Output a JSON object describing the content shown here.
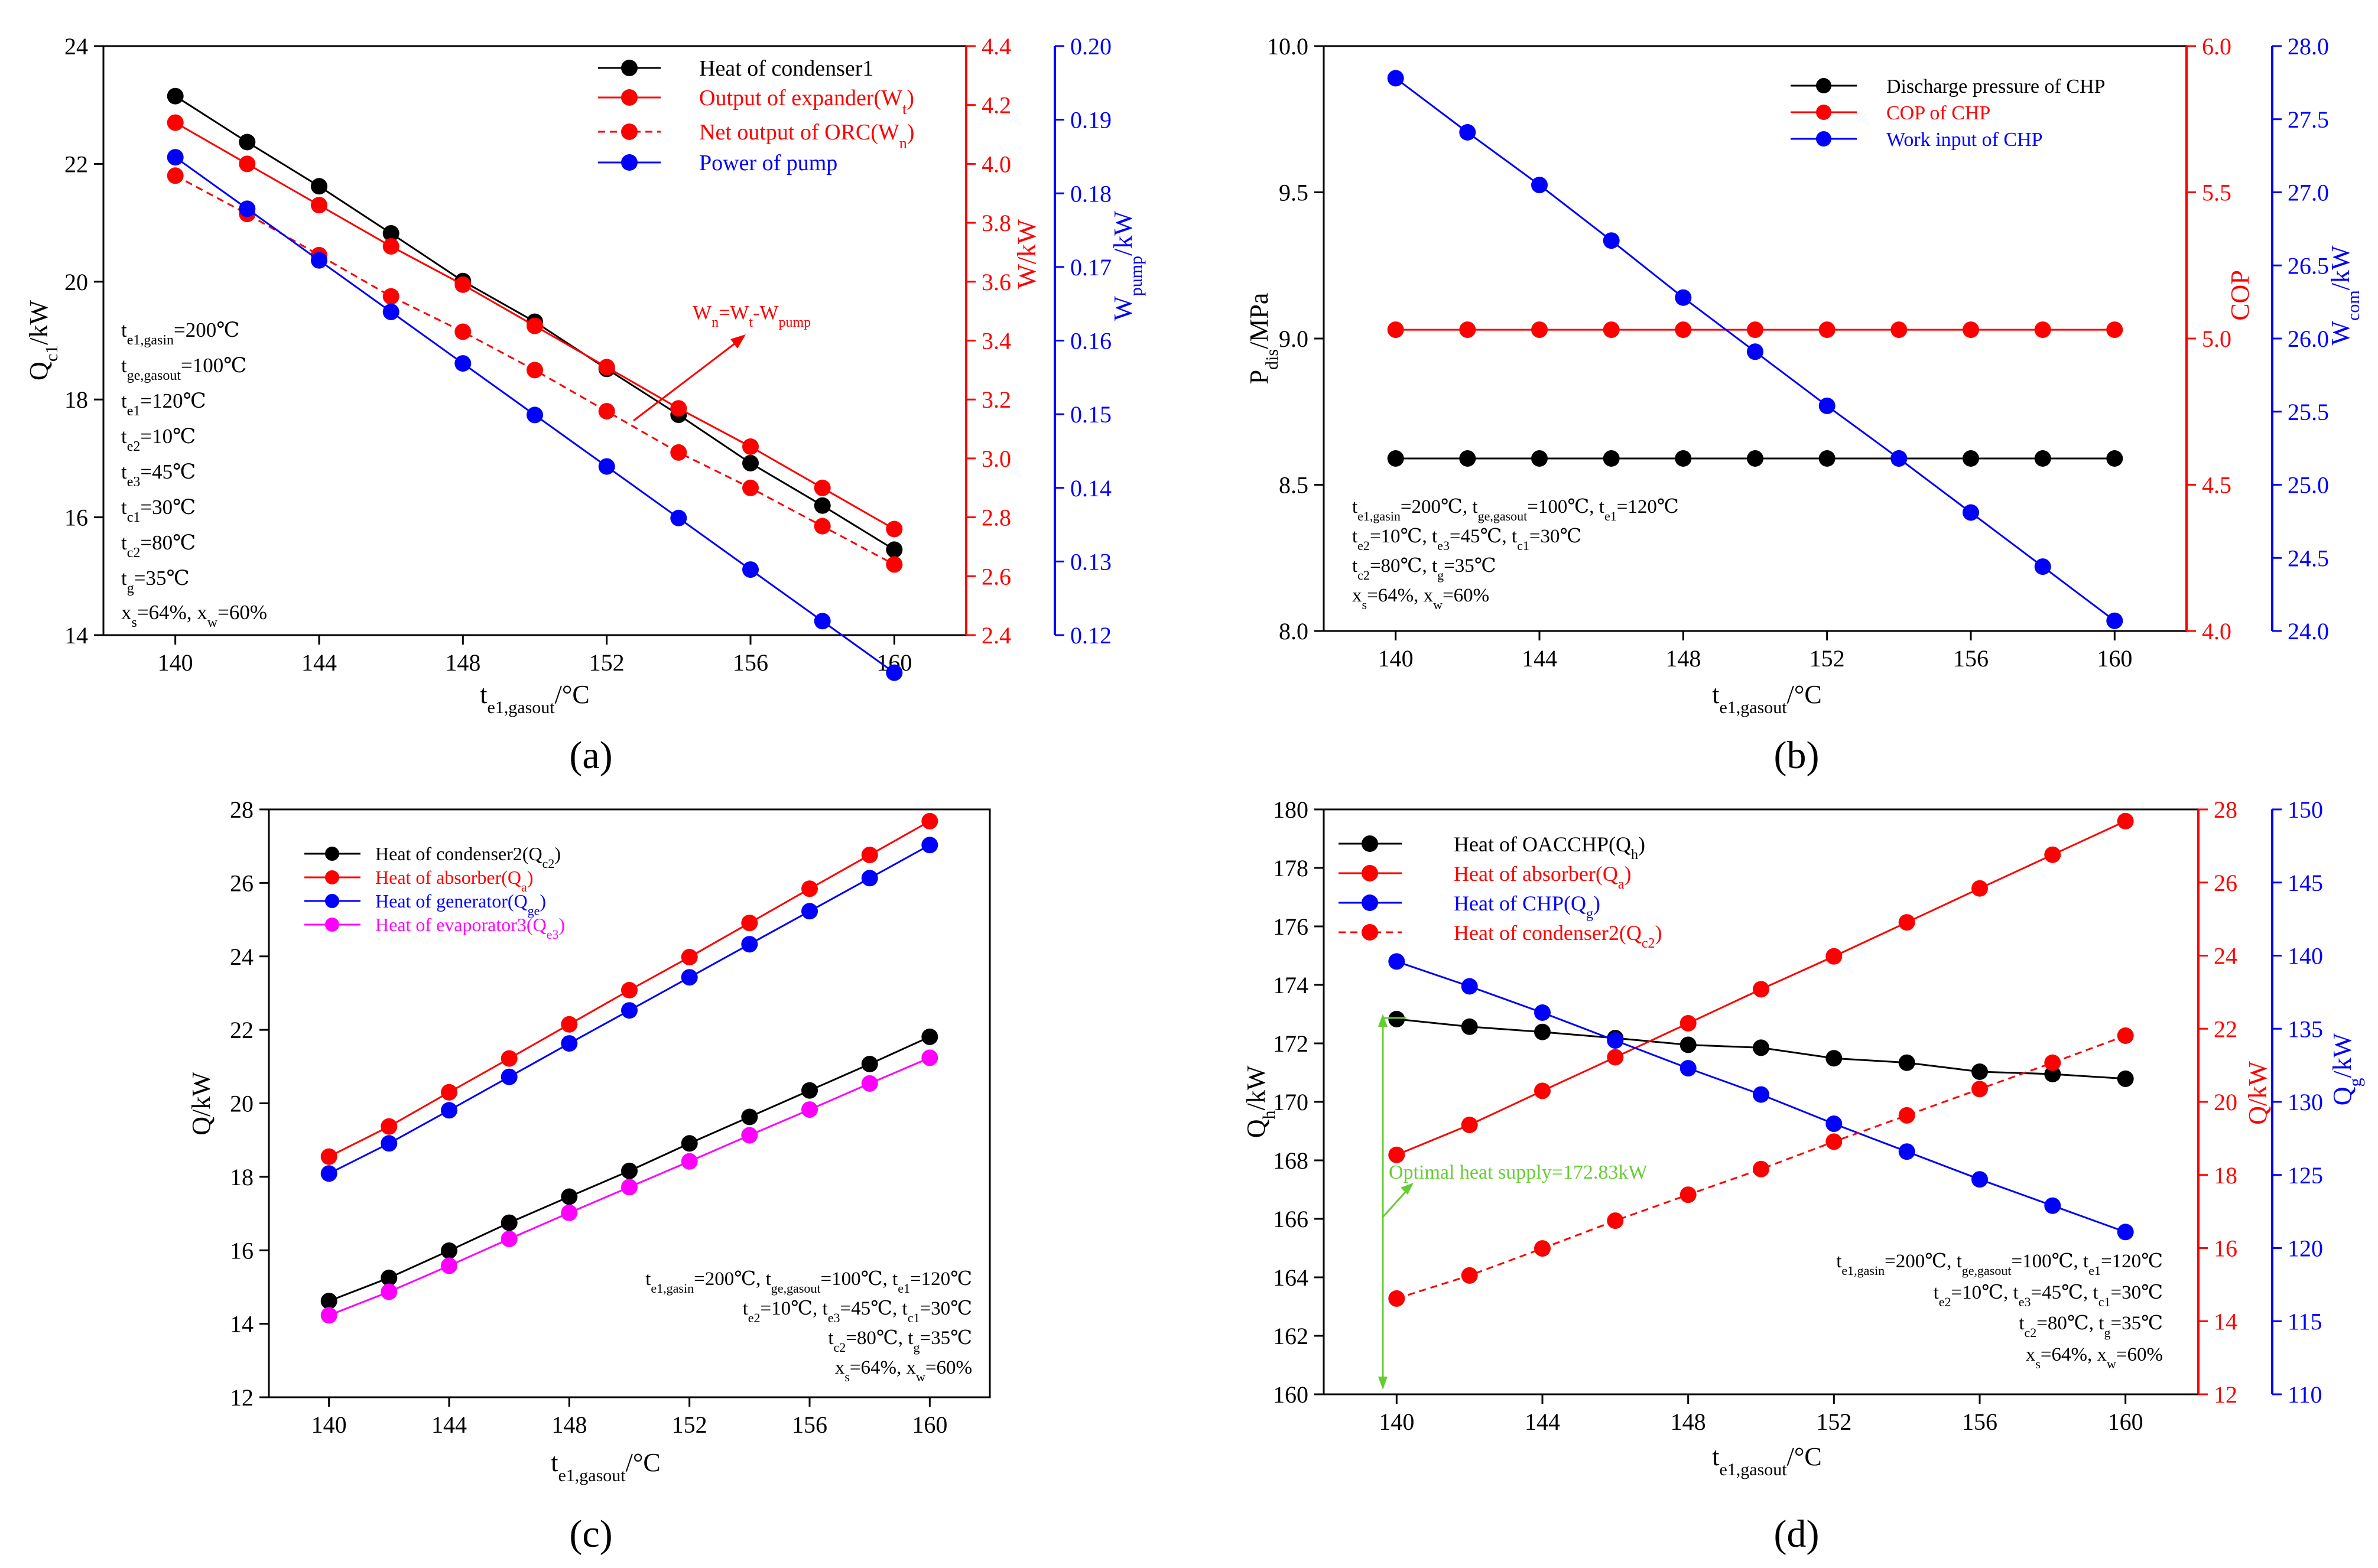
{
  "figure": {
    "panels": [
      "(a)",
      "(b)",
      "(c)",
      "(d)"
    ]
  },
  "colors": {
    "black": "#000000",
    "red": "#ff0000",
    "blue": "#0000ff",
    "magenta": "#ff00ff",
    "green": "#66cc33"
  },
  "chart_data": [
    {
      "type": "line",
      "panel": "(a)",
      "xlabel": "t e1,gasout /°C",
      "x": [
        140,
        142,
        144,
        146,
        148,
        150,
        152,
        154,
        156,
        158,
        160
      ],
      "xlim": [
        138,
        162
      ],
      "xticks": [
        140,
        144,
        148,
        152,
        156,
        160
      ],
      "axes": [
        {
          "id": "y1",
          "side": "left",
          "color": "#000000",
          "label": "Q c1 /kW",
          "lim": [
            14,
            24
          ],
          "ticks": [
            14,
            16,
            18,
            20,
            22,
            24
          ],
          "decimals": 0
        },
        {
          "id": "y2",
          "side": "right",
          "color": "#ff0000",
          "label": "W/kW",
          "lim": [
            2.4,
            4.4
          ],
          "ticks": [
            2.4,
            2.6,
            2.8,
            3.0,
            3.2,
            3.4,
            3.6,
            3.8,
            4.0,
            4.2,
            4.4
          ],
          "decimals": 1
        },
        {
          "id": "y3",
          "side": "right2",
          "color": "#0000ff",
          "label": "W pump /kW",
          "lim": [
            0.12,
            0.2
          ],
          "ticks": [
            0.12,
            0.13,
            0.14,
            0.15,
            0.16,
            0.17,
            0.18,
            0.19,
            0.2
          ],
          "decimals": 2
        }
      ],
      "series": [
        {
          "name": "Heat of condenser1",
          "axis": "y1",
          "color": "#000000",
          "dash": false,
          "values": [
            23.15,
            22.37,
            21.62,
            20.82,
            20.01,
            19.32,
            18.52,
            17.74,
            16.92,
            16.2,
            15.45
          ]
        },
        {
          "name": "Output of expander(Wt)",
          "axis": "y2",
          "color": "#ff0000",
          "dash": false,
          "values": [
            4.14,
            4.0,
            3.86,
            3.72,
            3.59,
            3.45,
            3.31,
            3.17,
            3.04,
            2.9,
            2.76
          ]
        },
        {
          "name": "Net output of ORC(Wn)",
          "axis": "y2",
          "color": "#ff0000",
          "dash": true,
          "values": [
            3.96,
            3.83,
            3.69,
            3.55,
            3.43,
            3.3,
            3.16,
            3.02,
            2.9,
            2.77,
            2.64
          ]
        },
        {
          "name": "Power of pump",
          "axis": "y3",
          "color": "#0000ff",
          "dash": false,
          "values": [
            0.1849,
            0.1779,
            0.1709,
            0.1639,
            0.1569,
            0.1499,
            0.1429,
            0.1359,
            0.1289,
            0.1219,
            0.1149
          ]
        }
      ],
      "legend_position": "top-right",
      "conditions": [
        "te1,gasin=200℃",
        "tge,gasout=100℃",
        "te1=120℃",
        "te2=10℃",
        "te3=45℃",
        "tc1=30℃",
        "tc2=80℃",
        "tg=35℃",
        "xs=64%, xw=60%"
      ],
      "annotations": [
        "Wn=Wt-Wpump"
      ]
    },
    {
      "type": "line",
      "panel": "(b)",
      "xlabel": "t e1,gasout /°C",
      "x": [
        140,
        142,
        144,
        146,
        148,
        150,
        152,
        154,
        156,
        158,
        160
      ],
      "xlim": [
        138,
        162
      ],
      "xticks": [
        140,
        144,
        148,
        152,
        156,
        160
      ],
      "axes": [
        {
          "id": "y1",
          "side": "left",
          "color": "#000000",
          "label": "P dis /MPa",
          "lim": [
            8.0,
            10.0
          ],
          "ticks": [
            8.0,
            8.5,
            9.0,
            9.5,
            10.0
          ],
          "decimals": 1
        },
        {
          "id": "y2",
          "side": "right",
          "color": "#ff0000",
          "label": "COP",
          "lim": [
            4.0,
            6.0
          ],
          "ticks": [
            4.0,
            4.5,
            5.0,
            5.5,
            6.0
          ],
          "decimals": 1
        },
        {
          "id": "y3",
          "side": "right2",
          "color": "#0000ff",
          "label": "W com /kW",
          "lim": [
            24.0,
            28.0
          ],
          "ticks": [
            24.0,
            24.5,
            25.0,
            25.5,
            26.0,
            26.5,
            27.0,
            27.5,
            28.0
          ],
          "decimals": 1
        }
      ],
      "series": [
        {
          "name": "Discharge pressure of CHP",
          "axis": "y1",
          "color": "#000000",
          "dash": false,
          "values": [
            8.59,
            8.59,
            8.59,
            8.59,
            8.59,
            8.59,
            8.59,
            8.59,
            8.59,
            8.59,
            8.59
          ]
        },
        {
          "name": "COP of CHP",
          "axis": "y2",
          "color": "#ff0000",
          "dash": false,
          "values": [
            5.03,
            5.03,
            5.03,
            5.03,
            5.03,
            5.03,
            5.03,
            5.03,
            5.03,
            5.03,
            5.03
          ]
        },
        {
          "name": "Work input of CHP",
          "axis": "y3",
          "color": "#0000ff",
          "dash": false,
          "values": [
            27.78,
            27.41,
            27.05,
            26.67,
            26.28,
            25.91,
            25.54,
            25.18,
            24.81,
            24.44,
            24.07
          ]
        }
      ],
      "legend_position": "top-right",
      "conditions": [
        "te1,gasin=200℃,  tge,gasout=100℃,  te1=120℃",
        "te2=10℃, te3=45℃, tc1=30℃",
        "tc2=80℃, tg=35℃",
        "xs=64%, xw=60%"
      ],
      "annotations": []
    },
    {
      "type": "line",
      "panel": "(c)",
      "xlabel": "t e1,gasout /°C",
      "x": [
        140,
        142,
        144,
        146,
        148,
        150,
        152,
        154,
        156,
        158,
        160
      ],
      "xlim": [
        138,
        162
      ],
      "xticks": [
        140,
        144,
        148,
        152,
        156,
        160
      ],
      "axes": [
        {
          "id": "y1",
          "side": "left",
          "color": "#000000",
          "label": "Q/kW",
          "lim": [
            12,
            28
          ],
          "ticks": [
            12,
            14,
            16,
            18,
            20,
            22,
            24,
            26,
            28
          ],
          "decimals": 0
        }
      ],
      "series": [
        {
          "name": "Heat of condenser2(Qc2)",
          "axis": "y1",
          "color": "#000000",
          "dash": false,
          "values": [
            14.62,
            15.25,
            15.99,
            16.75,
            17.46,
            18.16,
            18.91,
            19.63,
            20.35,
            21.07,
            21.81
          ]
        },
        {
          "name": "Heat of absorber(Qa)",
          "axis": "y1",
          "color": "#ff0000",
          "dash": false,
          "values": [
            18.55,
            19.37,
            20.3,
            21.22,
            22.15,
            23.08,
            23.98,
            24.91,
            25.84,
            26.76,
            27.68
          ]
        },
        {
          "name": "Heat of generator(Qge)",
          "axis": "y1",
          "color": "#0000ff",
          "dash": false,
          "values": [
            18.09,
            18.91,
            19.81,
            20.72,
            21.63,
            22.53,
            23.43,
            24.33,
            25.23,
            26.13,
            27.03
          ]
        },
        {
          "name": "Heat of evaporator3(Qe3)",
          "axis": "y1",
          "color": "#ff00ff",
          "dash": false,
          "values": [
            14.23,
            14.87,
            15.58,
            16.31,
            17.02,
            17.72,
            18.42,
            19.13,
            19.83,
            20.54,
            21.24
          ]
        }
      ],
      "legend_position": "top-left",
      "conditions": [
        "te1,gasin=200℃,  tge,gasout=100℃,  te1=120℃",
        "te2=10℃, te3=45℃, tc1=30℃",
        "tc2=80℃, tg=35℃",
        "xs=64%, xw=60%"
      ],
      "annotations": []
    },
    {
      "type": "line",
      "panel": "(d)",
      "xlabel": "t e1,gasout /°C",
      "x": [
        140,
        142,
        144,
        146,
        148,
        150,
        152,
        154,
        156,
        158,
        160
      ],
      "xlim": [
        138,
        162
      ],
      "xticks": [
        140,
        144,
        148,
        152,
        156,
        160
      ],
      "axes": [
        {
          "id": "y1",
          "side": "left",
          "color": "#000000",
          "label": "Q h /kW",
          "lim": [
            160,
            180
          ],
          "ticks": [
            160,
            162,
            164,
            166,
            168,
            170,
            172,
            174,
            176,
            178,
            180
          ],
          "decimals": 0
        },
        {
          "id": "y2",
          "side": "right",
          "color": "#ff0000",
          "label": "Q/kW",
          "lim": [
            12,
            28
          ],
          "ticks": [
            12,
            14,
            16,
            18,
            20,
            22,
            24,
            26,
            28
          ],
          "decimals": 0
        },
        {
          "id": "y3",
          "side": "right2",
          "color": "#0000ff",
          "label": "Q g /kW",
          "lim": [
            110,
            150
          ],
          "ticks": [
            110,
            115,
            120,
            125,
            130,
            135,
            140,
            145,
            150
          ],
          "decimals": 0
        }
      ],
      "series": [
        {
          "name": "Heat of OACCHP(Qh)",
          "axis": "y1",
          "color": "#000000",
          "dash": false,
          "values": [
            172.83,
            172.57,
            172.39,
            172.18,
            171.95,
            171.85,
            171.49,
            171.34,
            171.03,
            170.95,
            170.79
          ]
        },
        {
          "name": "Heat of absorber(Qa)",
          "axis": "y2",
          "color": "#ff0000",
          "dash": false,
          "values": [
            18.55,
            19.37,
            20.3,
            21.22,
            22.15,
            23.08,
            23.98,
            24.91,
            25.84,
            26.76,
            27.68
          ]
        },
        {
          "name": "Heat of CHP(Qg)",
          "axis": "y3",
          "color": "#0000ff",
          "dash": false,
          "values": [
            139.6,
            137.9,
            136.1,
            134.2,
            132.3,
            130.5,
            128.5,
            126.6,
            124.7,
            122.9,
            121.1
          ]
        },
        {
          "name": "Heat of condenser2(Qc2)",
          "axis": "y2",
          "color": "#ff0000",
          "dash": true,
          "values": [
            14.62,
            15.25,
            15.99,
            16.75,
            17.46,
            18.16,
            18.91,
            19.63,
            20.35,
            21.07,
            21.81
          ]
        }
      ],
      "legend_position": "top-left",
      "conditions": [
        "te1,gasin=200℃,  tge,gasout=100℃,  te1=120℃",
        "te2=10℃, te3=45℃, tc1=30℃",
        "tc2=80℃, tg=35℃",
        "xs=64%, xw=60%"
      ],
      "annotations": [
        "Optimal heat supply=172.83kW"
      ]
    }
  ]
}
